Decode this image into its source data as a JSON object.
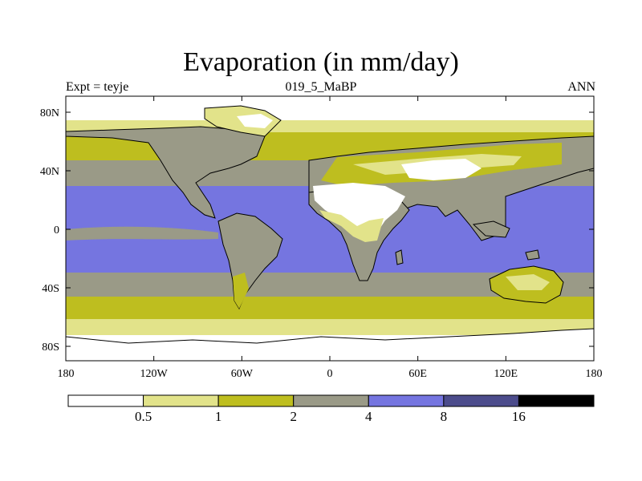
{
  "title": "Evaporation (in mm/day)",
  "left_label": "Expt = teyje",
  "center_label": "019_5_MaBP",
  "right_label": "ANN",
  "lat_labels": [
    "80N",
    "40N",
    "0",
    "40S",
    "80S"
  ],
  "lon_labels": [
    "180",
    "120W",
    "60W",
    "0",
    "60E",
    "120E",
    "180"
  ],
  "colorbar": {
    "levels": [
      "0.5",
      "1",
      "2",
      "4",
      "8",
      "16"
    ],
    "colors": [
      "#ffffff",
      "#e2e38a",
      "#bebe1f",
      "#9a9a87",
      "#7575e0",
      "#4c4c8c",
      "#000000"
    ]
  },
  "colors": {
    "white": "#ffffff",
    "pale": "#e2e38a",
    "olive": "#bebe1f",
    "gray": "#9a9a87",
    "blue": "#7575e0",
    "coast": "#000000"
  }
}
